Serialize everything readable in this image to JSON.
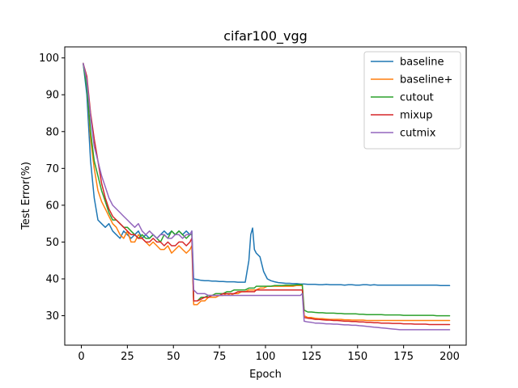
{
  "chart_data": {
    "type": "line",
    "title": "cifar100_vgg",
    "xlabel": "Epoch",
    "ylabel": "Test Error(%)",
    "xlim": [
      -9,
      209
    ],
    "ylim": [
      22,
      103
    ],
    "xticks": [
      0,
      25,
      50,
      75,
      100,
      125,
      150,
      175,
      200
    ],
    "yticks": [
      30,
      40,
      50,
      60,
      70,
      80,
      90,
      100
    ],
    "grid": false,
    "legend_position": "top-right",
    "x": [
      1,
      3,
      5,
      7,
      9,
      11,
      13,
      15,
      17,
      19,
      21,
      23,
      25,
      27,
      29,
      31,
      33,
      35,
      37,
      39,
      41,
      43,
      45,
      47,
      49,
      51,
      53,
      55,
      57,
      59,
      60,
      61,
      63,
      65,
      67,
      69,
      71,
      73,
      75,
      77,
      79,
      81,
      83,
      85,
      87,
      89,
      91,
      92,
      93,
      94,
      95,
      97,
      99,
      101,
      103,
      105,
      107,
      109,
      111,
      113,
      115,
      117,
      119,
      120,
      121,
      123,
      125,
      127,
      129,
      131,
      133,
      135,
      137,
      139,
      141,
      143,
      145,
      147,
      149,
      151,
      153,
      155,
      157,
      159,
      161,
      163,
      165,
      167,
      169,
      171,
      173,
      175,
      177,
      179,
      181,
      183,
      185,
      187,
      189,
      191,
      193,
      195,
      197,
      199,
      200
    ],
    "series": [
      {
        "name": "baseline",
        "color": "#1f77b4",
        "values": [
          98.5,
          90,
          72,
          62,
          56,
          55,
          54,
          55,
          53,
          52,
          51,
          53,
          52,
          51,
          52,
          53,
          51,
          52,
          51,
          52,
          51,
          52,
          53,
          52,
          53,
          52,
          53,
          52,
          53,
          52,
          53,
          40,
          39.8,
          39.6,
          39.5,
          39.5,
          39.4,
          39.4,
          39.3,
          39.3,
          39.2,
          39.2,
          39.2,
          39.1,
          39.1,
          39.1,
          45,
          52,
          53.8,
          48,
          47,
          46,
          42,
          40,
          39.5,
          39.2,
          39,
          38.9,
          38.8,
          38.8,
          38.7,
          38.7,
          38.6,
          38.6,
          38.6,
          38.5,
          38.5,
          38.5,
          38.4,
          38.4,
          38.5,
          38.4,
          38.4,
          38.4,
          38.4,
          38.3,
          38.4,
          38.4,
          38.3,
          38.3,
          38.4,
          38.4,
          38.3,
          38.4,
          38.3,
          38.3,
          38.3,
          38.3,
          38.3,
          38.3,
          38.3,
          38.3,
          38.3,
          38.3,
          38.3,
          38.3,
          38.3,
          38.3,
          38.3,
          38.3,
          38.3,
          38.2,
          38.2,
          38.2,
          38.2
        ]
      },
      {
        "name": "baseline+",
        "color": "#ff7f0e",
        "values": [
          98.5,
          93,
          78,
          70,
          64,
          61,
          59,
          57,
          55,
          54,
          52,
          51,
          53,
          50,
          50,
          52,
          51,
          50,
          49,
          50,
          49,
          48,
          48,
          49,
          47,
          48,
          49,
          48,
          47,
          48,
          49,
          33,
          33,
          34,
          34,
          35,
          35,
          35,
          35.5,
          35.5,
          36,
          35.5,
          36,
          36,
          36.5,
          36.5,
          37,
          37,
          37,
          37,
          37,
          37.5,
          37.5,
          38,
          38,
          38,
          38,
          38,
          38,
          38,
          38,
          38.2,
          38.2,
          38.2,
          30,
          29.5,
          29.5,
          29.3,
          29.2,
          29.2,
          29.1,
          29,
          29,
          29,
          29,
          28.9,
          28.9,
          28.8,
          28.8,
          28.8,
          28.8,
          28.7,
          28.7,
          28.7,
          28.7,
          28.7,
          28.7,
          28.7,
          28.7,
          28.7,
          28.7,
          28.7,
          28.7,
          28.7,
          28.7,
          28.7,
          28.7,
          28.7,
          28.7,
          28.7,
          28.7,
          28.7,
          28.7,
          28.7,
          28.7
        ]
      },
      {
        "name": "cutout",
        "color": "#2ca02c",
        "values": [
          98.5,
          92,
          80,
          72,
          68,
          64,
          61,
          58,
          56,
          56,
          55,
          54,
          54,
          53,
          52,
          51,
          52,
          51,
          51,
          52,
          51,
          50,
          52,
          51,
          53,
          52,
          53,
          52,
          51,
          52,
          52,
          34,
          34,
          35,
          35,
          35.5,
          35.5,
          36,
          36,
          36,
          36.5,
          36.5,
          37,
          37,
          37,
          37,
          37.5,
          37.5,
          37.5,
          37.5,
          38,
          38,
          38,
          38,
          38,
          38.2,
          38.2,
          38.2,
          38.3,
          38.3,
          38.3,
          38.4,
          38.4,
          38.4,
          31.5,
          31,
          31,
          30.9,
          30.8,
          30.8,
          30.7,
          30.7,
          30.7,
          30.6,
          30.6,
          30.5,
          30.5,
          30.5,
          30.5,
          30.4,
          30.4,
          30.3,
          30.3,
          30.3,
          30.3,
          30.3,
          30.2,
          30.2,
          30.2,
          30.2,
          30.2,
          30.1,
          30.1,
          30.1,
          30.1,
          30.1,
          30.1,
          30.1,
          30.1,
          30.1,
          30.0,
          30.0,
          30.0,
          30.0,
          30.0
        ]
      },
      {
        "name": "mixup",
        "color": "#d62728",
        "values": [
          98.5,
          95,
          85,
          78,
          72,
          66,
          62,
          59,
          57,
          56,
          55,
          54,
          53,
          52,
          52,
          51,
          51,
          50,
          50,
          51,
          50,
          50,
          49,
          50,
          49,
          49,
          50,
          50,
          49,
          50,
          51,
          34,
          34,
          34.5,
          35,
          35,
          35.5,
          35.5,
          35.5,
          36,
          36,
          36,
          36,
          36.5,
          36.5,
          36.5,
          36.5,
          36.5,
          36.5,
          36.5,
          37,
          37,
          37,
          37,
          37,
          37,
          37,
          37,
          37,
          37,
          37,
          37,
          37,
          37,
          29.5,
          29.3,
          29.2,
          29,
          29,
          28.9,
          28.8,
          28.8,
          28.7,
          28.7,
          28.6,
          28.5,
          28.5,
          28.4,
          28.4,
          28.3,
          28.3,
          28.2,
          28.2,
          28.1,
          28.1,
          28.0,
          28.0,
          28.0,
          27.9,
          27.9,
          27.9,
          27.8,
          27.8,
          27.8,
          27.7,
          27.7,
          27.7,
          27.7,
          27.6,
          27.6,
          27.6,
          27.6,
          27.6,
          27.6,
          27.6
        ]
      },
      {
        "name": "cutmix",
        "color": "#9467bd",
        "values": [
          98.5,
          94,
          84,
          76,
          72,
          68,
          65,
          62,
          60,
          59,
          58,
          57,
          56,
          55,
          54,
          55,
          53,
          52,
          53,
          52,
          51,
          52,
          52,
          51,
          51,
          52,
          52,
          51,
          52,
          52,
          53,
          37,
          36,
          36,
          36,
          35.5,
          35.5,
          35.5,
          35.5,
          35.5,
          35.5,
          35.5,
          35.5,
          35.5,
          35.5,
          35.5,
          35.5,
          35.5,
          35.5,
          35.5,
          35.5,
          35.5,
          35.5,
          35.5,
          35.5,
          35.5,
          35.5,
          35.5,
          35.5,
          35.5,
          35.5,
          35.5,
          35.5,
          36,
          28.5,
          28.3,
          28.2,
          28,
          28,
          27.9,
          27.8,
          27.8,
          27.7,
          27.7,
          27.6,
          27.5,
          27.5,
          27.4,
          27.4,
          27.3,
          27.2,
          27.1,
          27,
          26.9,
          26.8,
          26.7,
          26.6,
          26.5,
          26.4,
          26.3,
          26.2,
          26.2,
          26.2,
          26.2,
          26.2,
          26.2,
          26.2,
          26.2,
          26.2,
          26.2,
          26.2,
          26.2,
          26.2,
          26.2,
          26.2
        ]
      }
    ]
  }
}
